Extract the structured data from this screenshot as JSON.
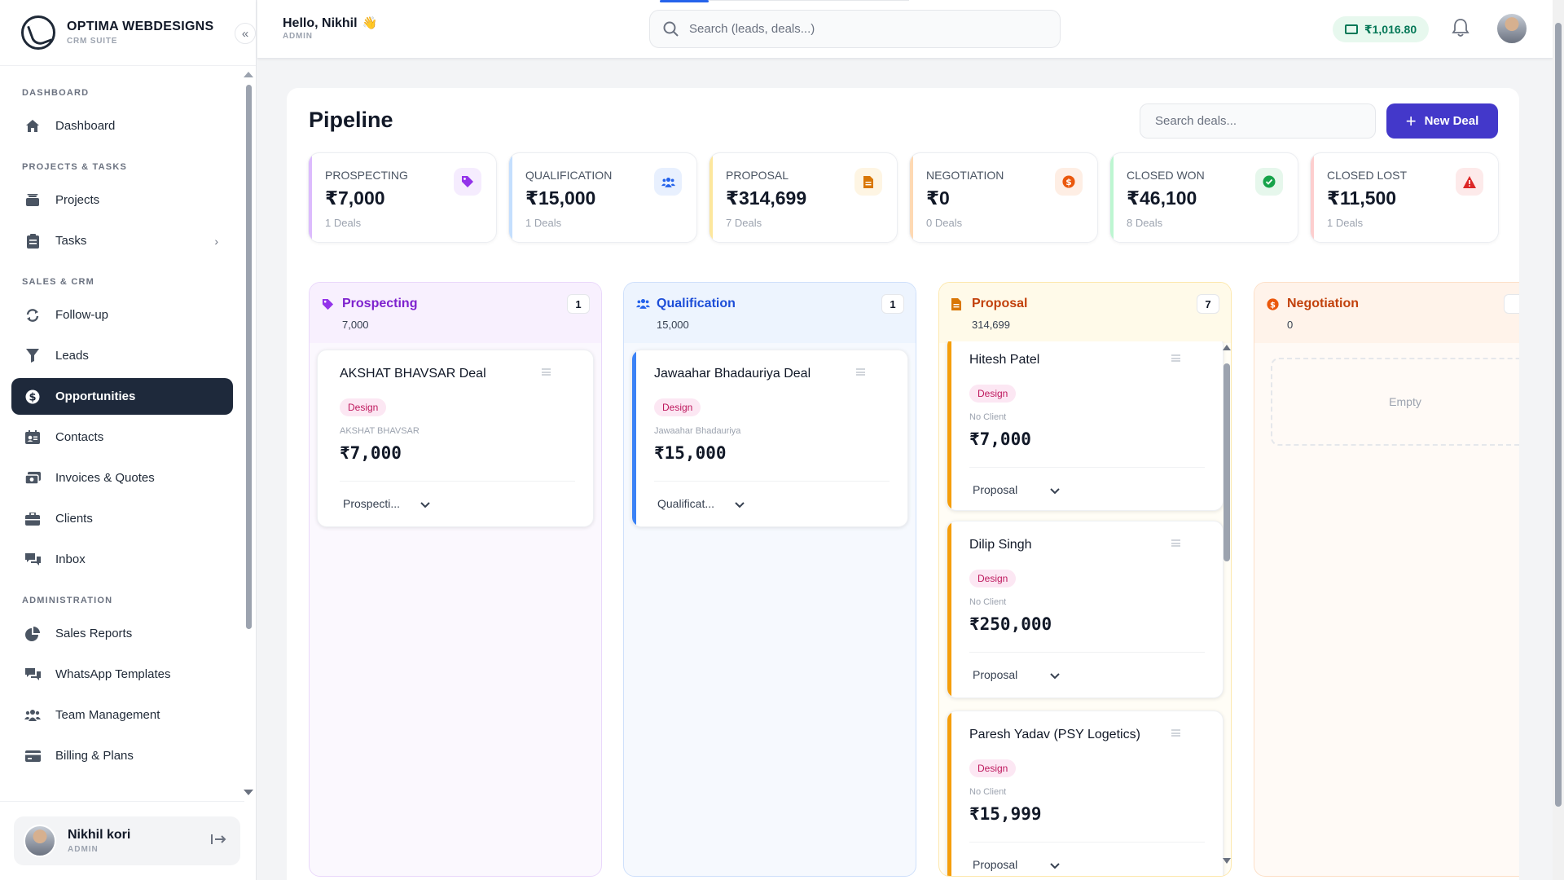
{
  "brand": {
    "name": "OPTIMA WEBDESIGNS",
    "subtitle": "CRM SUITE"
  },
  "sidebar": {
    "sections": [
      {
        "title": "DASHBOARD",
        "items": [
          {
            "label": "Dashboard",
            "icon": "home-icon"
          }
        ]
      },
      {
        "title": "PROJECTS & TASKS",
        "items": [
          {
            "label": "Projects",
            "icon": "folder-icon"
          },
          {
            "label": "Tasks",
            "icon": "clipboard-icon"
          }
        ]
      },
      {
        "title": "SALES & CRM",
        "items": [
          {
            "label": "Follow-up",
            "icon": "refresh-icon"
          },
          {
            "label": "Leads",
            "icon": "filter-icon"
          },
          {
            "label": "Opportunities",
            "icon": "dollar-icon"
          },
          {
            "label": "Contacts",
            "icon": "address-book-icon"
          },
          {
            "label": "Invoices & Quotes",
            "icon": "money-icon"
          },
          {
            "label": "Clients",
            "icon": "briefcase-icon"
          },
          {
            "label": "Inbox",
            "icon": "chat-icon"
          }
        ]
      },
      {
        "title": "ADMINISTRATION",
        "items": [
          {
            "label": "Sales Reports",
            "icon": "pie-chart-icon"
          },
          {
            "label": "WhatsApp Templates",
            "icon": "comments-icon"
          },
          {
            "label": "Team Management",
            "icon": "users-icon"
          },
          {
            "label": "Billing & Plans",
            "icon": "credit-card-icon"
          }
        ]
      }
    ],
    "active": "Opportunities",
    "user": {
      "name": "Nikhil kori",
      "role": "ADMIN"
    }
  },
  "header": {
    "greeting": "Hello, Nikhil",
    "role": "ADMIN",
    "search_placeholder": "Search (leads, deals...)",
    "wallet": "₹1,016.80"
  },
  "page": {
    "title": "Pipeline",
    "search_placeholder": "Search deals...",
    "new_deal_label": "New Deal"
  },
  "stats": [
    {
      "label": "PROSPECTING",
      "value": "₹7,000",
      "deals": "1 Deals",
      "color": "#9333ea",
      "bg": "#f5ecfe",
      "icon": "tag-icon"
    },
    {
      "label": "QUALIFICATION",
      "value": "₹15,000",
      "deals": "1 Deals",
      "color": "#2563eb",
      "bg": "#e8f0fe",
      "icon": "users-icon"
    },
    {
      "label": "PROPOSAL",
      "value": "₹314,699",
      "deals": "7 Deals",
      "color": "#d97706",
      "bg": "#fef5e3",
      "icon": "document-icon"
    },
    {
      "label": "NEGOTIATION",
      "value": "₹0",
      "deals": "0 Deals",
      "color": "#ea580c",
      "bg": "#feeee4",
      "icon": "coin-icon"
    },
    {
      "label": "CLOSED WON",
      "value": "₹46,100",
      "deals": "8 Deals",
      "color": "#16a34a",
      "bg": "#e6f7ec",
      "icon": "check-circle-icon"
    },
    {
      "label": "CLOSED LOST",
      "value": "₹11,500",
      "deals": "1 Deals",
      "color": "#dc2626",
      "bg": "#fdeaea",
      "icon": "warning-icon"
    }
  ],
  "columns": [
    {
      "title": "Prospecting",
      "amount": "7,000",
      "count": "1",
      "color": "#7e22ce",
      "cards": [
        {
          "title": "AKSHAT BHAVSAR Deal",
          "tag": "Design",
          "client": "AKSHAT BHAVSAR",
          "amount": "₹7,000",
          "stage": "Prospecti..."
        }
      ]
    },
    {
      "title": "Qualification",
      "amount": "15,000",
      "count": "1",
      "color": "#1d4ed8",
      "cards": [
        {
          "title": "Jawaahar Bhadauriya Deal",
          "tag": "Design",
          "client": "Jawaahar Bhadauriya",
          "amount": "₹15,000",
          "stage": "Qualificat..."
        }
      ]
    },
    {
      "title": "Proposal",
      "amount": "314,699",
      "count": "7",
      "color": "#c2410c",
      "cards": [
        {
          "title": "Hitesh Patel",
          "tag": "Design",
          "client": "No Client",
          "amount": "₹7,000",
          "stage": "Proposal"
        },
        {
          "title": "Dilip Singh",
          "tag": "Design",
          "client": "No Client",
          "amount": "₹250,000",
          "stage": "Proposal"
        },
        {
          "title": "Paresh Yadav (PSY Logetics)",
          "tag": "Design",
          "client": "No Client",
          "amount": "₹15,999",
          "stage": "Proposal"
        }
      ]
    },
    {
      "title": "Negotiation",
      "amount": "0",
      "count": "",
      "color": "#c2410c",
      "empty_label": "Empty",
      "cards": []
    }
  ]
}
